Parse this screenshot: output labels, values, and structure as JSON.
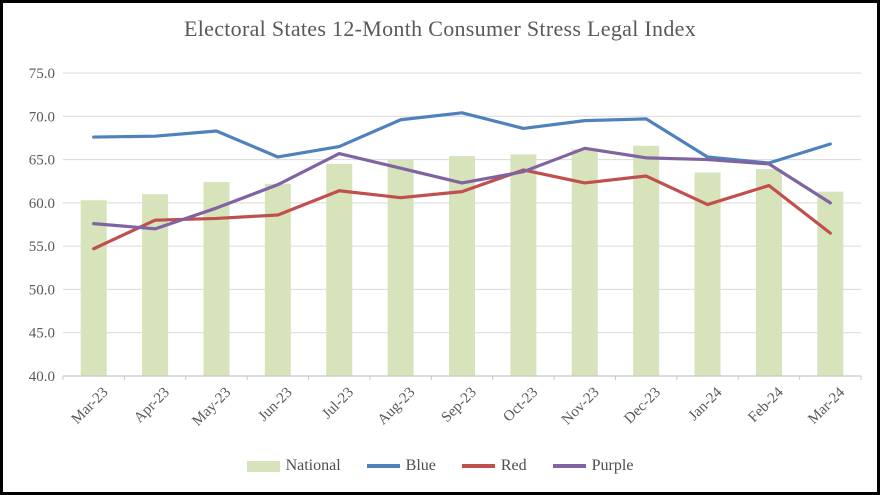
{
  "chart_data": {
    "type": "combo-bar-line",
    "title": "Electoral States 12-Month Consumer Stress Legal Index",
    "categories": [
      "Mar-23",
      "Apr-23",
      "May-23",
      "Jun-23",
      "Jul-23",
      "Aug-23",
      "Sep-23",
      "Oct-23",
      "Nov-23",
      "Dec-23",
      "Jan-24",
      "Feb-24",
      "Mar-24"
    ],
    "bar_series": {
      "name": "National",
      "color": "#d6e3bb",
      "values": [
        60.3,
        61.0,
        62.4,
        62.2,
        64.5,
        65.0,
        65.4,
        65.6,
        66.2,
        66.6,
        63.5,
        63.9,
        61.3
      ]
    },
    "line_series": [
      {
        "name": "Blue",
        "color": "#4f81bd",
        "values": [
          67.6,
          67.7,
          68.3,
          65.3,
          66.5,
          69.6,
          70.4,
          68.6,
          69.5,
          69.7,
          65.3,
          64.6,
          66.8
        ]
      },
      {
        "name": "Red",
        "color": "#c0504d",
        "values": [
          54.7,
          58.0,
          58.2,
          58.6,
          61.4,
          60.6,
          61.3,
          63.8,
          62.3,
          63.1,
          59.8,
          62.0,
          56.5
        ]
      },
      {
        "name": "Purple",
        "color": "#8064a2",
        "values": [
          57.6,
          57.0,
          59.4,
          62.1,
          65.7,
          64.0,
          62.3,
          63.6,
          66.3,
          65.2,
          65.0,
          64.5,
          60.0
        ]
      }
    ],
    "y_axis": {
      "min": 40,
      "max": 75,
      "step": 5,
      "tick_labels": [
        "40.0",
        "45.0",
        "50.0",
        "55.0",
        "60.0",
        "65.0",
        "70.0",
        "75.0"
      ]
    },
    "grid": true,
    "legend_position": "bottom",
    "colors": {
      "gridline": "#d9d9d9",
      "axis": "#c8c8c8",
      "label_text": "#595959"
    }
  }
}
